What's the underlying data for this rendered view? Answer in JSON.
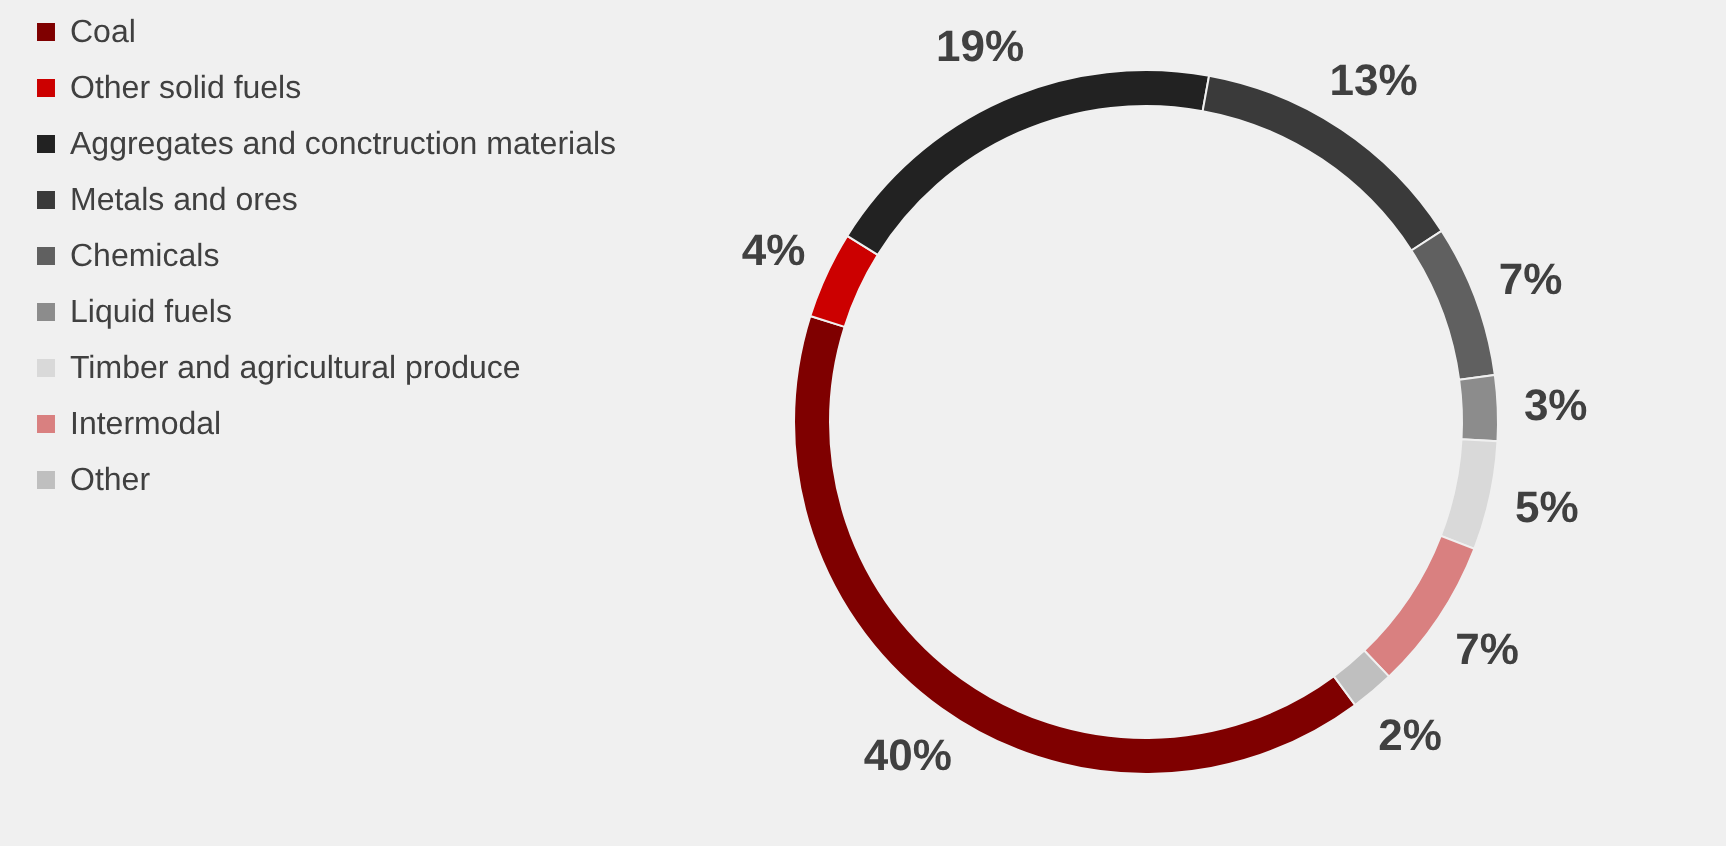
{
  "chart_data": {
    "type": "donut",
    "categories": [
      "Coal",
      "Other solid fuels",
      "Aggregates and conctruction materials",
      "Metals and ores",
      "Chemicals",
      "Liquid fuels",
      "Timber and agricultural produce",
      "Intermodal",
      "Other"
    ],
    "values": [
      40,
      4,
      19,
      13,
      7,
      3,
      5,
      7,
      2
    ],
    "colors": [
      "#7f0000",
      "#cc0000",
      "#222222",
      "#3a3a3a",
      "#606060",
      "#8c8c8c",
      "#d9d9d9",
      "#d98080",
      "#bfbfbf"
    ],
    "value_labels": [
      "40%",
      "4%",
      "19%",
      "13%",
      "7%",
      "3%",
      "5%",
      "7%",
      "2%"
    ],
    "legend": "left"
  }
}
